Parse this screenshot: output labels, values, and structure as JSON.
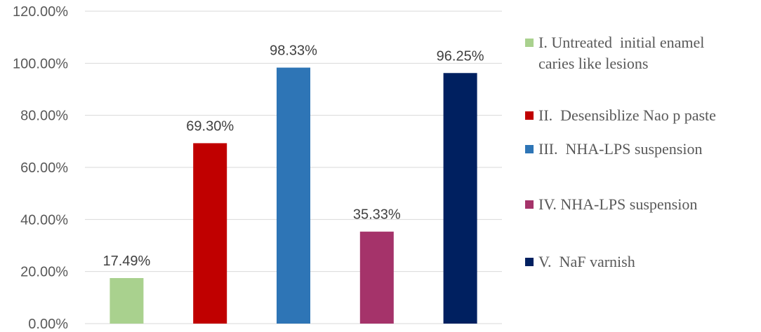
{
  "chart_data": {
    "type": "bar",
    "categories": [
      "I",
      "II",
      "III",
      "IV",
      "V"
    ],
    "values": [
      17.49,
      69.3,
      98.33,
      35.33,
      96.25
    ],
    "data_labels": [
      "17.49%",
      "69.30%",
      "98.33%",
      "35.33%",
      "96.25%"
    ],
    "colors": [
      "#a9d18e",
      "#c00000",
      "#2e75b6",
      "#a5336a",
      "#002060"
    ],
    "ylim": [
      0,
      120
    ],
    "ytick_values": [
      0,
      20,
      40,
      60,
      80,
      100,
      120
    ],
    "ytick_labels": [
      "0.00%",
      "20.00%",
      "40.00%",
      "60.00%",
      "80.00%",
      "100.00%",
      "120.00%"
    ],
    "grid": true,
    "gridline_color": "#d9d9d9",
    "legend_position": "right",
    "legend": [
      {
        "lines": [
          "I. Untreated  initial enamel",
          "caries like lesions"
        ],
        "color": "#a9d18e"
      },
      {
        "lines": [
          "II.  Desensiblize Nao p paste"
        ],
        "color": "#c00000"
      },
      {
        "lines": [
          "III.  NHA-LPS suspension"
        ],
        "color": "#2e75b6"
      },
      {
        "lines": [
          "IV. NHA-LPS suspension"
        ],
        "color": "#a5336a"
      },
      {
        "lines": [
          "V.  NaF varnish"
        ],
        "color": "#002060"
      }
    ]
  }
}
